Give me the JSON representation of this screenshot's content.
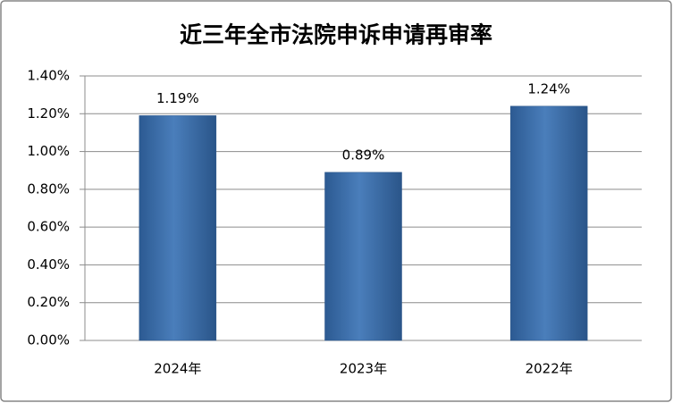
{
  "chart_data": {
    "type": "bar",
    "title": "近三年全市法院申诉申请再审率",
    "categories": [
      "2024年",
      "2023年",
      "2022年"
    ],
    "values": [
      1.19,
      0.89,
      1.24
    ],
    "value_labels": [
      "1.19%",
      "0.89%",
      "1.24%"
    ],
    "color": "#4a7ebb",
    "ylim": [
      0,
      1.4
    ],
    "yticks": [
      {
        "value": 0,
        "label": "0.00%"
      },
      {
        "value": 0.2,
        "label": "0.20%"
      },
      {
        "value": 0.4,
        "label": "0.40%"
      },
      {
        "value": 0.6,
        "label": "0.60%"
      },
      {
        "value": 0.8,
        "label": "0.80%"
      },
      {
        "value": 1.0,
        "label": "1.00%"
      },
      {
        "value": 1.2,
        "label": "1.20%"
      },
      {
        "value": 1.4,
        "label": "1.40%"
      }
    ],
    "grid": true
  }
}
